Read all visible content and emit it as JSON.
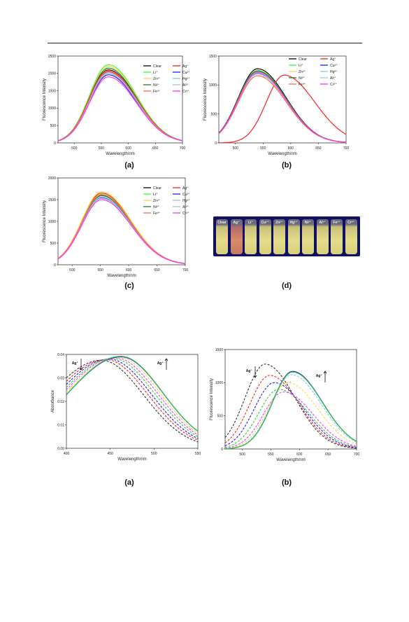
{
  "captions": {
    "a1": "(a)",
    "b1": "(b)",
    "c1": "(c)",
    "d1": "(d)",
    "a2": "(a)",
    "b2": "(b)"
  },
  "vial_labels": [
    "Clear",
    "Ag⁺",
    "Li⁺",
    "Cu²⁺",
    "Zn²⁺",
    "Hg²⁺",
    "Ni²⁺",
    "Al³⁺",
    "Fe³⁺",
    "Cr³⁺"
  ],
  "colors": {
    "Clear": "#000000",
    "Ag+": "#ff2020",
    "Li+": "#33ff33",
    "Cu2+": "#1a1aff",
    "Zn2+": "#ffd24d",
    "Hg2+": "#7fd0e6",
    "Ni2+": "#2a7a2a",
    "Al3+": "#b8b8d0",
    "Fe3+": "#ff6a55",
    "Cr3+": "#ff33ff"
  },
  "chart_data": [
    {
      "type": "line",
      "xlabel": "Wavelength/nm",
      "ylabel": "Fluorescence Intensity",
      "xlim": [
        470,
        700
      ],
      "ylim": [
        0,
        2500
      ],
      "xticks": [
        "500",
        "550",
        "600",
        "650",
        "700"
      ],
      "yticks": [
        "0",
        "500",
        "1000",
        "1500",
        "2000",
        "2500"
      ],
      "legend": [
        "Clear",
        "Ag+",
        "Li+",
        "Cu2+",
        "Zn2+",
        "Hg2+",
        "Ni2+",
        "Al3+",
        "Fe3+",
        "Cr3+"
      ],
      "legend_text": [
        "Clear",
        "Ag⁺",
        "Li⁺",
        "Cu²⁺",
        "Zn²⁺",
        "Hg²⁺",
        "Ni²⁺",
        "Al³⁺",
        "Fe³⁺",
        "Cr³⁺"
      ],
      "series": [
        {
          "name": "Clear",
          "peak_x": 563,
          "peak_y": 2100,
          "dash": false
        },
        {
          "name": "Ag+",
          "peak_x": 563,
          "peak_y": 2050,
          "dash": false
        },
        {
          "name": "Li+",
          "peak_x": 563,
          "peak_y": 2250,
          "dash": false
        },
        {
          "name": "Cu2+",
          "peak_x": 563,
          "peak_y": 1960,
          "dash": false
        },
        {
          "name": "Zn2+",
          "peak_x": 563,
          "peak_y": 2200,
          "dash": false
        },
        {
          "name": "Hg2+",
          "peak_x": 563,
          "peak_y": 2020,
          "dash": false
        },
        {
          "name": "Ni2+",
          "peak_x": 563,
          "peak_y": 2150,
          "dash": false
        },
        {
          "name": "Al3+",
          "peak_x": 563,
          "peak_y": 2000,
          "dash": false
        },
        {
          "name": "Fe3+",
          "peak_x": 563,
          "peak_y": 2080,
          "dash": false
        },
        {
          "name": "Cr3+",
          "peak_x": 563,
          "peak_y": 1900,
          "dash": false
        }
      ]
    },
    {
      "type": "line",
      "xlabel": "Wavelength/nm",
      "ylabel": "Fluorescence Intensity",
      "xlim": [
        470,
        700
      ],
      "ylim": [
        0,
        1500
      ],
      "xticks": [
        "500",
        "550",
        "600",
        "650",
        "700"
      ],
      "yticks": [
        "0",
        "500",
        "1000",
        "1500"
      ],
      "legend": [
        "Clear",
        "Ag+",
        "Li+",
        "Cu2+",
        "Zn2+",
        "Hg2+",
        "Ni2+",
        "Al3+",
        "Fe3+",
        "Cr3+"
      ],
      "legend_text": [
        "Clear",
        "Ag⁺",
        "Li⁺",
        "Cu²⁺",
        "Zn²⁺",
        "Hg²⁺",
        "Ni²⁺",
        "Al³⁺",
        "Fe³⁺",
        "Cr³⁺"
      ],
      "series": [
        {
          "name": "Clear",
          "peak_x": 540,
          "peak_y": 1280,
          "dash": false
        },
        {
          "name": "Ag+",
          "peak_x": 588,
          "peak_y": 1170,
          "dash": false,
          "wide": true
        },
        {
          "name": "Li+",
          "peak_x": 540,
          "peak_y": 1250,
          "dash": false
        },
        {
          "name": "Cu2+",
          "peak_x": 540,
          "peak_y": 1200,
          "dash": false
        },
        {
          "name": "Zn2+",
          "peak_x": 540,
          "peak_y": 1230,
          "dash": false
        },
        {
          "name": "Hg2+",
          "peak_x": 540,
          "peak_y": 1210,
          "dash": false
        },
        {
          "name": "Ni2+",
          "peak_x": 540,
          "peak_y": 1240,
          "dash": false
        },
        {
          "name": "Al3+",
          "peak_x": 540,
          "peak_y": 1190,
          "dash": false
        },
        {
          "name": "Fe3+",
          "peak_x": 540,
          "peak_y": 1160,
          "dash": false
        },
        {
          "name": "Cr3+",
          "peak_x": 540,
          "peak_y": 1220,
          "dash": false
        }
      ]
    },
    {
      "type": "line",
      "xlabel": "Wavelength/nm",
      "ylabel": "Fluorescence Intensity",
      "xlim": [
        475,
        700
      ],
      "ylim": [
        0,
        2000
      ],
      "xticks": [
        "500",
        "550",
        "600",
        "650",
        "700"
      ],
      "yticks": [
        "0",
        "500",
        "1000",
        "1500",
        "2000"
      ],
      "legend": [
        "Clear",
        "Ag+",
        "Li+",
        "Cu2+",
        "Zn2+",
        "Hg2+",
        "Ni2+",
        "Al3+",
        "Fe3+",
        "Cr3+"
      ],
      "legend_text": [
        "Clear",
        "Ag⁺",
        "Li⁺",
        "Cu²⁺",
        "Zn²⁺",
        "Hg²⁺",
        "Ni²⁺",
        "Al³⁺",
        "Fe³⁺",
        "Cr³⁺"
      ],
      "series": [
        {
          "name": "Clear",
          "peak_x": 552,
          "peak_y": 1600,
          "dash": false
        },
        {
          "name": "Ag+",
          "peak_x": 552,
          "peak_y": 1650,
          "dash": false
        },
        {
          "name": "Li+",
          "peak_x": 552,
          "peak_y": 1620,
          "dash": false
        },
        {
          "name": "Cu2+",
          "peak_x": 552,
          "peak_y": 1540,
          "dash": false
        },
        {
          "name": "Zn2+",
          "peak_x": 552,
          "peak_y": 1680,
          "dash": false
        },
        {
          "name": "Hg2+",
          "peak_x": 552,
          "peak_y": 1560,
          "dash": false
        },
        {
          "name": "Ni2+",
          "peak_x": 552,
          "peak_y": 1590,
          "dash": false
        },
        {
          "name": "Al3+",
          "peak_x": 552,
          "peak_y": 1530,
          "dash": false
        },
        {
          "name": "Fe3+",
          "peak_x": 552,
          "peak_y": 1610,
          "dash": false
        },
        {
          "name": "Cr3+",
          "peak_x": 552,
          "peak_y": 1500,
          "dash": false
        }
      ]
    },
    {
      "type": "line",
      "xlabel": "Wavelength/nm",
      "ylabel": "Absorbance",
      "xlim": [
        400,
        550
      ],
      "ylim": [
        0,
        0.04
      ],
      "xticks": [
        "400",
        "450",
        "500",
        "550"
      ],
      "yticks": [
        "0.00",
        "0.01",
        "0.02",
        "0.03",
        "0.04"
      ],
      "annotations": [
        "Ag⁺",
        "Ag⁺"
      ],
      "series": [
        {
          "color": "#333333",
          "peak_x": 440,
          "peak_y": 0.0375,
          "dash": true
        },
        {
          "color": "#ff2020",
          "peak_x": 445,
          "peak_y": 0.0378,
          "dash": true
        },
        {
          "color": "#1a1aff",
          "peak_x": 449,
          "peak_y": 0.038,
          "dash": true
        },
        {
          "color": "#33cc33",
          "peak_x": 453,
          "peak_y": 0.0383,
          "dash": true
        },
        {
          "color": "#ff33ff",
          "peak_x": 456,
          "peak_y": 0.0386,
          "dash": true
        },
        {
          "color": "#ffd24d",
          "peak_x": 459,
          "peak_y": 0.0388,
          "dash": true
        },
        {
          "color": "#1a1aff",
          "peak_x": 462,
          "peak_y": 0.039,
          "dash": false
        },
        {
          "color": "#33cc33",
          "peak_x": 462,
          "peak_y": 0.0392,
          "dash": false
        }
      ]
    },
    {
      "type": "line",
      "xlabel": "Wavelength/nm",
      "ylabel": "Fluorescence Intensity",
      "xlim": [
        470,
        700
      ],
      "ylim": [
        0,
        1500
      ],
      "xticks": [
        "500",
        "550",
        "600",
        "650",
        "700"
      ],
      "yticks": [
        "0",
        "500",
        "1000",
        "1500"
      ],
      "annotations": [
        "Ag⁺",
        "Ag⁺"
      ],
      "series": [
        {
          "color": "#333333",
          "peak_x": 540,
          "peak_y": 1280,
          "dash": true
        },
        {
          "color": "#ff2020",
          "peak_x": 548,
          "peak_y": 1110,
          "dash": true
        },
        {
          "color": "#1a1aff",
          "peak_x": 556,
          "peak_y": 1000,
          "dash": true
        },
        {
          "color": "#33cc33",
          "peak_x": 564,
          "peak_y": 900,
          "dash": true
        },
        {
          "color": "#ff33ff",
          "peak_x": 572,
          "peak_y": 860,
          "dash": true
        },
        {
          "color": "#ffd24d",
          "peak_x": 580,
          "peak_y": 1000,
          "dash": true
        },
        {
          "color": "#7fd0e6",
          "peak_x": 586,
          "peak_y": 1120,
          "dash": true
        },
        {
          "color": "#1a1aff",
          "peak_x": 588,
          "peak_y": 1170,
          "dash": false
        },
        {
          "color": "#33cc33",
          "peak_x": 588,
          "peak_y": 1160,
          "dash": false
        }
      ]
    }
  ]
}
